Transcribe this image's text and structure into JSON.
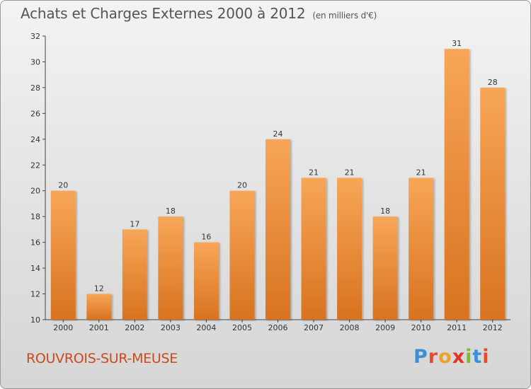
{
  "chart_data": {
    "type": "bar",
    "title": "Achats et Charges Externes 2000 à 2012",
    "subtitle": "(en milliers d'€)",
    "categories": [
      "2000",
      "2001",
      "2002",
      "2003",
      "2004",
      "2005",
      "2006",
      "2007",
      "2008",
      "2009",
      "2010",
      "2011",
      "2012"
    ],
    "values": [
      20,
      12,
      17,
      18,
      16,
      20,
      24,
      21,
      21,
      18,
      21,
      31,
      28
    ],
    "ylim": [
      10,
      32
    ],
    "yticks": [
      10,
      12,
      14,
      16,
      18,
      20,
      22,
      24,
      26,
      28,
      30,
      32
    ],
    "grid": false,
    "bar_color": "#f0923c"
  },
  "footer": {
    "city": "ROUVROIS-SUR-MEUSE",
    "logo_text": "Proxiti"
  },
  "colors": {
    "city": "#cc4a1c",
    "logo": [
      "#3b8fd6",
      "#e84b2a",
      "#f0a12b",
      "#e0332d",
      "#7bbf2a",
      "#3b8fd6",
      "#e84b2a"
    ]
  }
}
